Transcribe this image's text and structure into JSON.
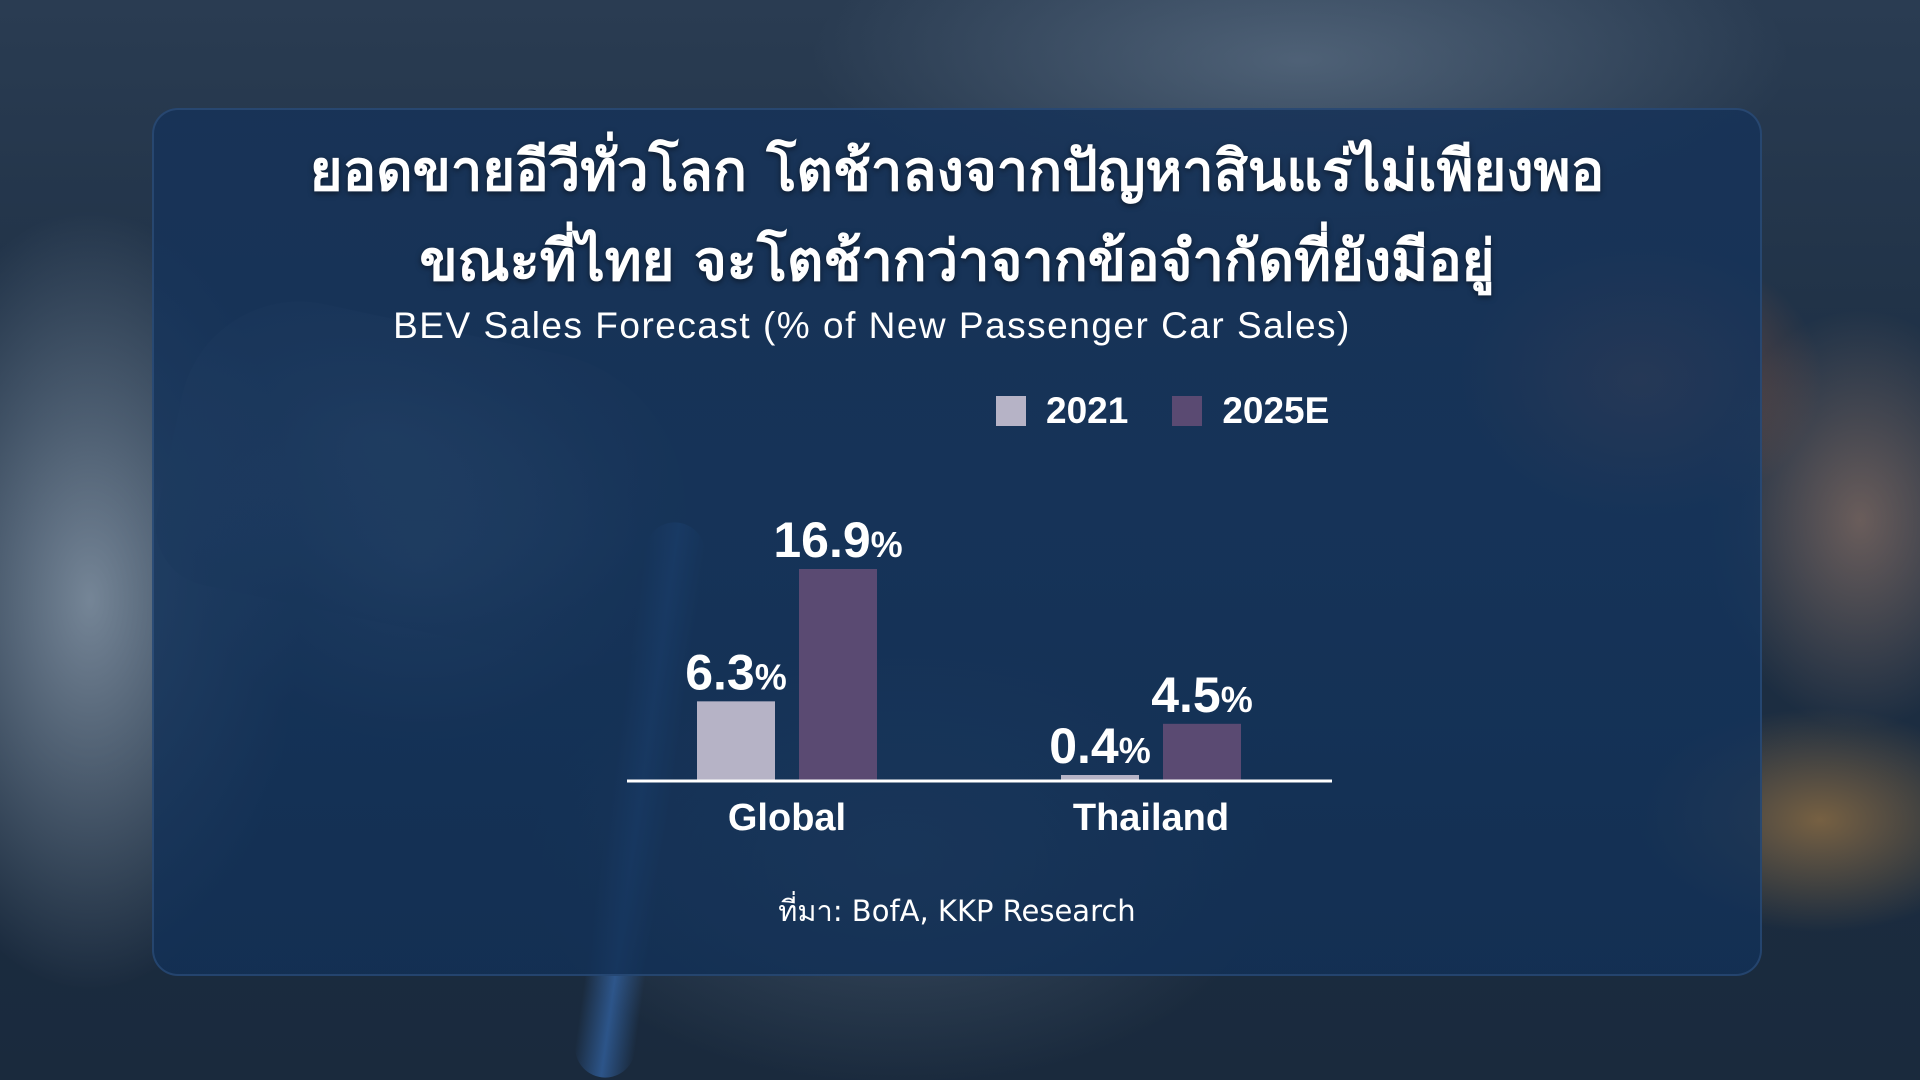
{
  "title_line1": "ยอดขายอีวีทั่วโลก โตช้าลงจากปัญหาสินแร่ไม่เพียงพอ",
  "title_line2": "ขณะที่ไทย จะโตช้ากว่าจากข้อจำกัดที่ยังมีอยู่",
  "source": "ที่มา: BofA, KKP Research",
  "colors": {
    "series_2021": "#b6b3c6",
    "series_2025E": "#5a4a72",
    "axis": "#ffffff",
    "text": "#ffffff"
  },
  "chart_data": {
    "type": "bar",
    "title": "BEV Sales Forecast (% of New Passenger Car Sales)",
    "categories": [
      "Global",
      "Thailand"
    ],
    "series": [
      {
        "name": "2021",
        "values": [
          6.3,
          0.4
        ],
        "labels": [
          "6.3",
          "0.4"
        ]
      },
      {
        "name": "2025E",
        "values": [
          16.9,
          4.5
        ],
        "labels": [
          "16.9",
          "4.5"
        ]
      }
    ],
    "unit": "%",
    "ylim": [
      0,
      16.9
    ],
    "grid": false,
    "legend_position": "top-right"
  }
}
